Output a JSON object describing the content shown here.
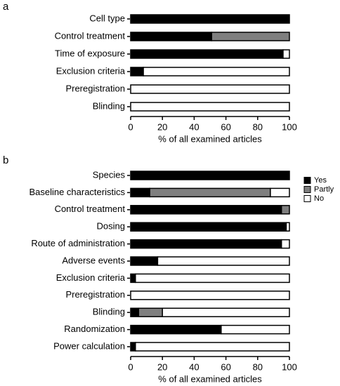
{
  "chart_data": [
    {
      "type": "stacked-barh",
      "panel_label": "a",
      "x_label": "% of all examined articles",
      "categories": [
        "Cell type",
        "Control treatment",
        "Time of exposure",
        "Exclusion criteria",
        "Preregistration",
        "Blinding"
      ],
      "series": [
        {
          "color": "#000000",
          "values": [
            100,
            51,
            96,
            8,
            0,
            0
          ]
        },
        {
          "color": "#7f7f7f",
          "values": [
            0,
            49,
            0,
            0,
            0,
            0
          ]
        },
        {
          "color": "#ffffff",
          "values": [
            0,
            0,
            4,
            92,
            100,
            100
          ]
        }
      ],
      "xlim": [
        0,
        100
      ],
      "xticks": [
        0,
        20,
        40,
        60,
        80,
        100
      ]
    },
    {
      "type": "stacked-barh",
      "panel_label": "b",
      "x_label": "% of all examined articles",
      "categories": [
        "Species",
        "Baseline characteristics",
        "Control treatment",
        "Dosing",
        "Route of administration",
        "Adverse events",
        "Exclusion criteria",
        "Preregistration",
        "Blinding",
        "Randomization",
        "Power calculation"
      ],
      "series": [
        {
          "name": "Yes",
          "color": "#000000",
          "values": [
            100,
            12,
            95,
            98,
            95,
            17,
            3,
            0,
            5,
            57,
            3
          ]
        },
        {
          "name": "Partly",
          "color": "#7f7f7f",
          "values": [
            0,
            76,
            5,
            0,
            0,
            0,
            0,
            0,
            15,
            0,
            0
          ]
        },
        {
          "name": "No",
          "color": "#ffffff",
          "values": [
            0,
            12,
            0,
            2,
            5,
            83,
            97,
            100,
            80,
            43,
            97
          ]
        }
      ],
      "xlim": [
        0,
        100
      ],
      "xticks": [
        0,
        20,
        40,
        60,
        80,
        100
      ],
      "legend": "upper right"
    }
  ]
}
